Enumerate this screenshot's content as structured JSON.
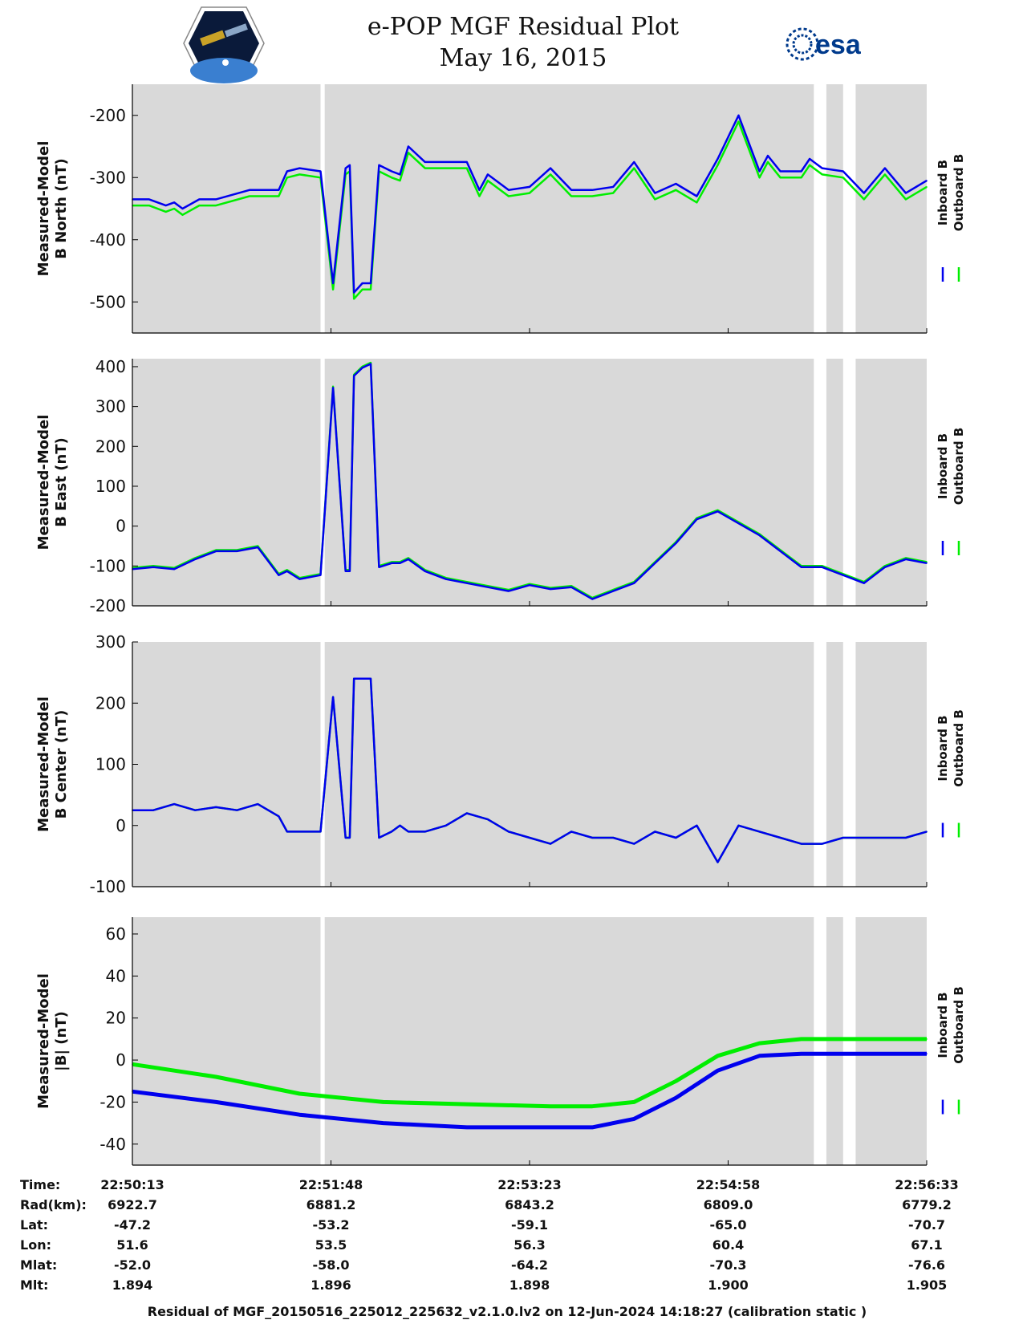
{
  "header": {
    "title": "e-POP MGF Residual Plot",
    "date": "May 16, 2015",
    "left_logo": "cassiope-satellite-logo",
    "right_logo_text": "esa"
  },
  "chart_data": [
    {
      "type": "line",
      "id": "b-north",
      "ylabel_line1": "Measured-Model",
      "ylabel_line2": "B North (nT)",
      "yticks": [
        "-200",
        "-300",
        "-400",
        "-500"
      ],
      "ytick_values": [
        -200,
        -300,
        -400,
        -500
      ],
      "ylim": [
        -550,
        -150
      ],
      "legend": [
        "Inboard B",
        "Outboard B"
      ],
      "series": [
        {
          "name": "Outboard B",
          "color": "#00ee00",
          "x": [
            0,
            4,
            8,
            10,
            12,
            16,
            20,
            28,
            35,
            37,
            40,
            45,
            48,
            51,
            52,
            53,
            55,
            57,
            59,
            62,
            64,
            66,
            70,
            80,
            83,
            85,
            90,
            95,
            100,
            105,
            110,
            115,
            120,
            125,
            130,
            135,
            140,
            145,
            150,
            152,
            155,
            160,
            162,
            165,
            170,
            175,
            180,
            185,
            190
          ],
          "y": [
            -345,
            -345,
            -355,
            -350,
            -360,
            -345,
            -345,
            -330,
            -330,
            -300,
            -295,
            -300,
            -480,
            -295,
            -290,
            -495,
            -480,
            -480,
            -290,
            -300,
            -305,
            -260,
            -285,
            -285,
            -330,
            -305,
            -330,
            -325,
            -295,
            -330,
            -330,
            -325,
            -285,
            -335,
            -320,
            -340,
            -280,
            -210,
            -300,
            -275,
            -300,
            -300,
            -280,
            -295,
            -300,
            -335,
            -295,
            -335,
            -315
          ]
        },
        {
          "name": "Inboard B",
          "color": "#0000ee",
          "x": [
            0,
            4,
            8,
            10,
            12,
            16,
            20,
            28,
            35,
            37,
            40,
            45,
            48,
            51,
            52,
            53,
            55,
            57,
            59,
            62,
            64,
            66,
            70,
            80,
            83,
            85,
            90,
            95,
            100,
            105,
            110,
            115,
            120,
            125,
            130,
            135,
            140,
            145,
            150,
            152,
            155,
            160,
            162,
            165,
            170,
            175,
            180,
            185,
            190
          ],
          "y": [
            -335,
            -335,
            -345,
            -340,
            -350,
            -335,
            -335,
            -320,
            -320,
            -290,
            -285,
            -290,
            -470,
            -285,
            -280,
            -485,
            -470,
            -470,
            -280,
            -290,
            -295,
            -250,
            -275,
            -275,
            -320,
            -295,
            -320,
            -315,
            -285,
            -320,
            -320,
            -315,
            -275,
            -325,
            -310,
            -330,
            -270,
            -200,
            -290,
            -265,
            -290,
            -290,
            -270,
            -285,
            -290,
            -325,
            -285,
            -325,
            -305
          ]
        }
      ]
    },
    {
      "type": "line",
      "id": "b-east",
      "ylabel_line1": "Measured-Model",
      "ylabel_line2": "B East (nT)",
      "yticks": [
        "400",
        "300",
        "200",
        "100",
        "0",
        "-100",
        "-200"
      ],
      "ytick_values": [
        400,
        300,
        200,
        100,
        0,
        -100,
        -200
      ],
      "ylim": [
        -200,
        420
      ],
      "legend": [
        "Inboard B",
        "Outboard B"
      ],
      "series": [
        {
          "name": "Outboard B",
          "color": "#00ee00",
          "x": [
            0,
            5,
            10,
            15,
            20,
            25,
            30,
            35,
            37,
            40,
            45,
            48,
            51,
            52,
            53,
            55,
            57,
            59,
            62,
            64,
            66,
            70,
            75,
            80,
            85,
            90,
            95,
            100,
            105,
            110,
            115,
            120,
            125,
            130,
            135,
            140,
            145,
            150,
            155,
            160,
            165,
            170,
            175,
            180,
            185,
            190
          ],
          "y": [
            -105,
            -100,
            -105,
            -80,
            -60,
            -60,
            -50,
            -120,
            -110,
            -130,
            -120,
            350,
            -110,
            -110,
            380,
            400,
            410,
            -100,
            -90,
            -90,
            -80,
            -110,
            -130,
            -140,
            -150,
            -160,
            -145,
            -155,
            -150,
            -180,
            -160,
            -140,
            -90,
            -40,
            20,
            40,
            10,
            -20,
            -60,
            -100,
            -100,
            -120,
            -140,
            -100,
            -80,
            -90
          ]
        },
        {
          "name": "Inboard B",
          "color": "#0000ee",
          "x": [
            0,
            5,
            10,
            15,
            20,
            25,
            30,
            35,
            37,
            40,
            45,
            48,
            51,
            52,
            53,
            55,
            57,
            59,
            62,
            64,
            66,
            70,
            75,
            80,
            85,
            90,
            95,
            100,
            105,
            110,
            115,
            120,
            125,
            130,
            135,
            140,
            145,
            150,
            155,
            160,
            165,
            170,
            175,
            180,
            185,
            190
          ],
          "y": [
            -108,
            -103,
            -108,
            -83,
            -63,
            -63,
            -53,
            -123,
            -113,
            -133,
            -123,
            347,
            -113,
            -113,
            377,
            397,
            407,
            -103,
            -93,
            -93,
            -83,
            -113,
            -133,
            -143,
            -153,
            -163,
            -148,
            -158,
            -153,
            -183,
            -163,
            -143,
            -93,
            -43,
            17,
            37,
            7,
            -23,
            -63,
            -103,
            -103,
            -123,
            -143,
            -103,
            -83,
            -93
          ]
        }
      ]
    },
    {
      "type": "line",
      "id": "b-center",
      "ylabel_line1": "Measured-Model",
      "ylabel_line2": "B Center (nT)",
      "yticks": [
        "300",
        "200",
        "100",
        "0",
        "-100"
      ],
      "ytick_values": [
        300,
        200,
        100,
        0,
        -100
      ],
      "ylim": [
        -100,
        300
      ],
      "legend": [
        "Inboard B",
        "Outboard B"
      ],
      "series": [
        {
          "name": "Outboard B",
          "color": "#00ee00",
          "x": [
            0,
            5,
            10,
            15,
            20,
            25,
            30,
            35,
            37,
            40,
            45,
            48,
            51,
            52,
            53,
            55,
            57,
            59,
            62,
            64,
            66,
            70,
            75,
            80,
            85,
            90,
            95,
            100,
            105,
            110,
            115,
            120,
            125,
            130,
            135,
            140,
            145,
            150,
            155,
            160,
            165,
            170,
            175,
            180,
            185,
            190
          ],
          "y": [
            25,
            25,
            35,
            25,
            30,
            25,
            35,
            15,
            -10,
            -10,
            -10,
            210,
            -20,
            -20,
            240,
            240,
            240,
            -20,
            -10,
            0,
            -10,
            -10,
            0,
            20,
            10,
            -10,
            -20,
            -30,
            -10,
            -20,
            -20,
            -30,
            -10,
            -20,
            0,
            -60,
            0,
            -10,
            -20,
            -30,
            -30,
            -20,
            -20,
            -20,
            -20,
            -10
          ]
        },
        {
          "name": "Inboard B",
          "color": "#0000ee",
          "x": [
            0,
            5,
            10,
            15,
            20,
            25,
            30,
            35,
            37,
            40,
            45,
            48,
            51,
            52,
            53,
            55,
            57,
            59,
            62,
            64,
            66,
            70,
            75,
            80,
            85,
            90,
            95,
            100,
            105,
            110,
            115,
            120,
            125,
            130,
            135,
            140,
            145,
            150,
            155,
            160,
            165,
            170,
            175,
            180,
            185,
            190
          ],
          "y": [
            25,
            25,
            35,
            25,
            30,
            25,
            35,
            15,
            -10,
            -10,
            -10,
            210,
            -20,
            -20,
            240,
            240,
            240,
            -20,
            -10,
            0,
            -10,
            -10,
            0,
            20,
            10,
            -10,
            -20,
            -30,
            -10,
            -20,
            -20,
            -30,
            -10,
            -20,
            0,
            -60,
            0,
            -10,
            -20,
            -30,
            -30,
            -20,
            -20,
            -20,
            -20,
            -10
          ]
        }
      ]
    },
    {
      "type": "line",
      "id": "b-total",
      "ylabel_line1": "Measured-Model",
      "ylabel_line2": "|B| (nT)",
      "yticks": [
        "60",
        "40",
        "20",
        "0",
        "-20",
        "-40"
      ],
      "ytick_values": [
        60,
        40,
        20,
        0,
        -20,
        -40
      ],
      "ylim": [
        -50,
        68
      ],
      "legend": [
        "Inboard B",
        "Outboard B"
      ],
      "series": [
        {
          "name": "Outboard B",
          "color": "#00ee00",
          "x": [
            0,
            20,
            40,
            60,
            80,
            100,
            110,
            120,
            130,
            140,
            150,
            160,
            170,
            180,
            190
          ],
          "y": [
            -2,
            -8,
            -16,
            -20,
            -21,
            -22,
            -22,
            -20,
            -10,
            2,
            8,
            10,
            10,
            10,
            10
          ]
        },
        {
          "name": "Inboard B",
          "color": "#0000ee",
          "x": [
            0,
            20,
            40,
            60,
            80,
            100,
            110,
            120,
            130,
            140,
            150,
            160,
            170,
            180,
            190
          ],
          "y": [
            -15,
            -20,
            -26,
            -30,
            -32,
            -32,
            -32,
            -28,
            -18,
            -5,
            2,
            3,
            3,
            3,
            3
          ]
        }
      ]
    }
  ],
  "xaxis": {
    "range": [
      0,
      190
    ],
    "tick_values": [
      0,
      47.5,
      95,
      142.5,
      190
    ]
  },
  "gaps": [
    [
      45,
      46
    ],
    [
      163,
      166
    ],
    [
      170,
      173
    ]
  ],
  "orbit_table": {
    "row_labels": [
      "Time:",
      "Rad(km):",
      "Lat:",
      "Lon:",
      "Mlat:",
      "Mlt:"
    ],
    "columns": [
      [
        "22:50:13",
        "6922.7",
        "-47.2",
        "51.6",
        "-52.0",
        "1.894"
      ],
      [
        "22:51:48",
        "6881.2",
        "-53.2",
        "53.5",
        "-58.0",
        "1.896"
      ],
      [
        "22:53:23",
        "6843.2",
        "-59.1",
        "56.3",
        "-64.2",
        "1.898"
      ],
      [
        "22:54:58",
        "6809.0",
        "-65.0",
        "60.4",
        "-70.3",
        "1.900"
      ],
      [
        "22:56:33",
        "6779.2",
        "-70.7",
        "67.1",
        "-76.6",
        "1.905"
      ]
    ]
  },
  "footer": "Residual of MGF_20150516_225012_225632_v2.1.0.lv2 on 12-Jun-2024 14:18:27 (calibration static )",
  "colors": {
    "inboard": "#0000ee",
    "outboard": "#00ee00",
    "plot_bg": "#d9d9d9",
    "gap": "#ffffff"
  }
}
